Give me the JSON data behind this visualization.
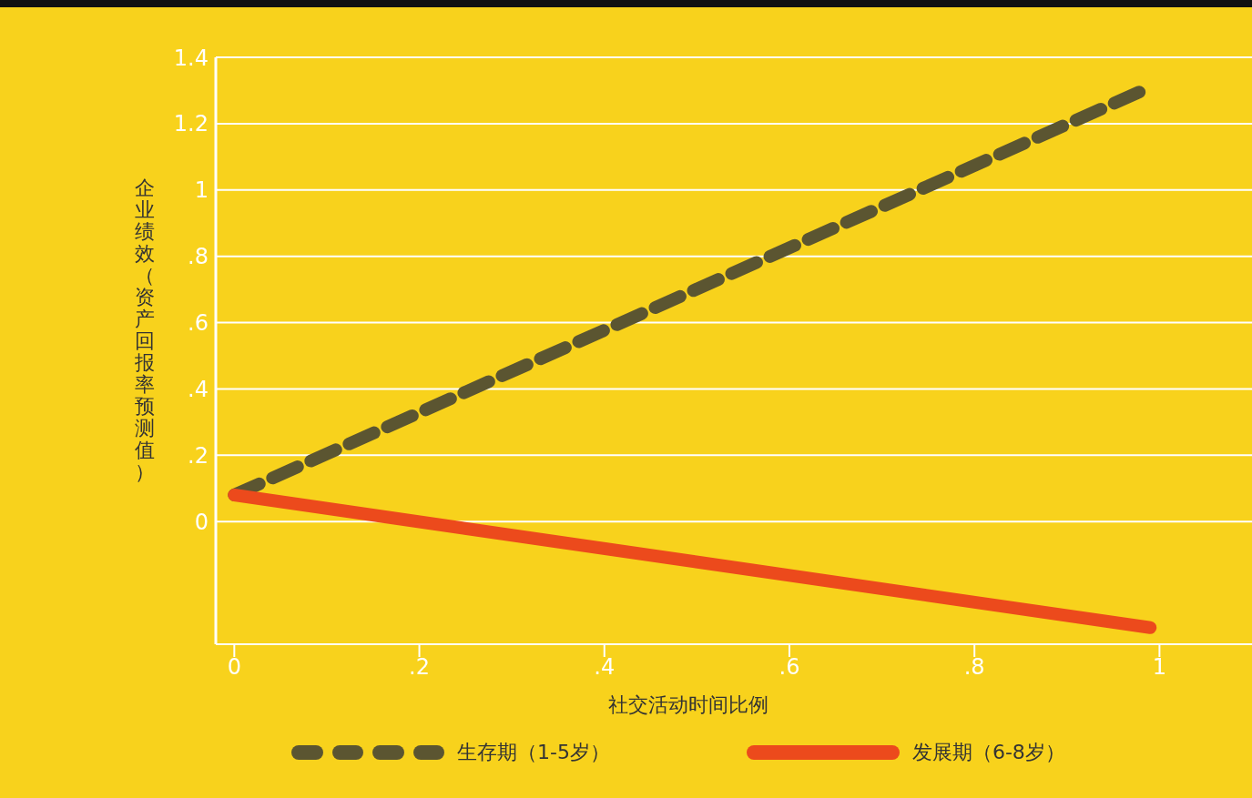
{
  "chart_data": {
    "type": "line",
    "xlabel": "社交活动时间比例",
    "ylabel": "企业绩效（资产回报率预测值）",
    "x": [
      0,
      0.99
    ],
    "series": [
      {
        "name": "生存期（1-5岁）",
        "color": "#5b5531",
        "values": [
          0.08,
          1.31
        ],
        "line_style": "dashed"
      },
      {
        "name": "发展期（6-8岁）",
        "color": "#ec4a1c",
        "values": [
          0.08,
          -0.32
        ],
        "line_style": "solid"
      }
    ],
    "xlim": [
      -0.02,
      1.1
    ],
    "xticks": [
      0,
      {
        "value": 0.2,
        "label": ".2"
      },
      {
        "value": 0.4,
        "label": ".4"
      },
      {
        "value": 0.6,
        "label": ".6"
      },
      {
        "value": 0.8,
        "label": ".8"
      },
      1
    ],
    "ylim": [
      -0.37,
      1.4
    ],
    "yticks": [
      0,
      {
        "value": 0.2,
        "label": ".2"
      },
      {
        "value": 0.4,
        "label": ".4"
      },
      {
        "value": 0.6,
        "label": ".6"
      },
      {
        "value": 0.8,
        "label": ".8"
      },
      1,
      1.2,
      1.4
    ],
    "grid": "y",
    "legend": "bottom",
    "marker": "none"
  }
}
